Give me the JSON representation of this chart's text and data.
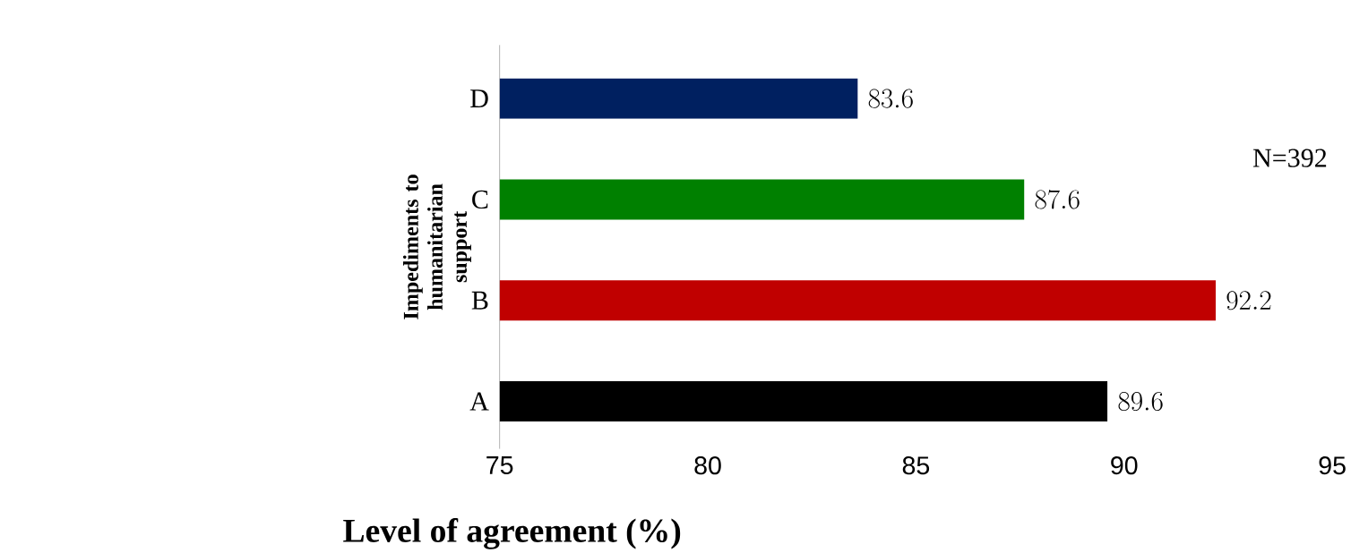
{
  "chart_data": {
    "type": "bar",
    "orientation": "horizontal",
    "ylabel": "Impediments to humanitarian support",
    "xlabel": "Level of agreement (%)",
    "categories": [
      "D",
      "C",
      "B",
      "A"
    ],
    "values": [
      83.6,
      87.6,
      92.2,
      89.6
    ],
    "colors": [
      "#002060",
      "#008000",
      "#c00000",
      "#000000"
    ],
    "xlim": [
      75,
      95
    ],
    "xticks": [
      75,
      80,
      85,
      90,
      95
    ],
    "data_labels": true,
    "annotations": [
      "N=392"
    ]
  }
}
